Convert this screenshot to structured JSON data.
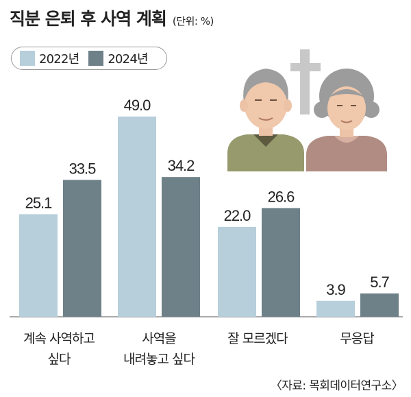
{
  "title": "직분 은퇴 후 사역 계획",
  "unit_label": "(단위: %)",
  "source": "〈자료: 목회데이터연구소〉",
  "colors": {
    "series_2022": "#b7cedb",
    "series_2024": "#6e8088",
    "axis": "#555555"
  },
  "illustration": {
    "icons": [
      "elderly-man-icon",
      "elderly-woman-icon",
      "cross-icon"
    ]
  },
  "chart_data": {
    "type": "bar",
    "categories": [
      [
        "계속 사역하고",
        "싶다"
      ],
      [
        "사역을",
        "내려놓고 싶다"
      ],
      [
        "잘 모르겠다"
      ],
      [
        "무응답"
      ]
    ],
    "series": [
      {
        "name": "2022년",
        "values": [
          25.1,
          49.0,
          22.0,
          3.9
        ],
        "labels": [
          "25.1",
          "49.0",
          "22.0",
          "3.9"
        ]
      },
      {
        "name": "2024년",
        "values": [
          33.5,
          34.2,
          26.6,
          5.7
        ],
        "labels": [
          "33.5",
          "34.2",
          "26.6",
          "5.7"
        ]
      }
    ],
    "ylim": [
      0,
      55
    ],
    "grid": false,
    "legend_position": "top-left"
  }
}
